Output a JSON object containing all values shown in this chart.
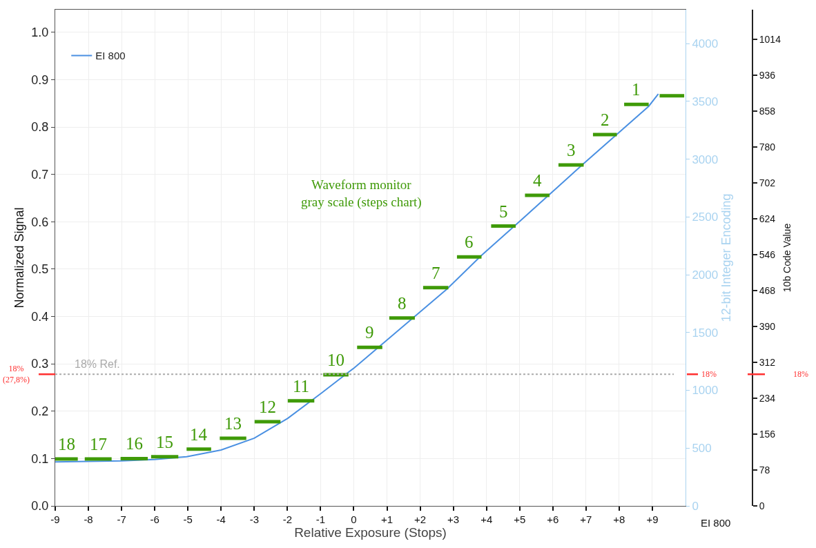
{
  "chart_data": {
    "type": "line",
    "xlabel": "Relative Exposure (Stops)",
    "ylabel": "Normalized Signal",
    "y2label": "12-bit Integer Encoding",
    "y3label": "10b Code Value",
    "xlim": [
      -9,
      10
    ],
    "xticks": [
      {
        "value": -9,
        "label": "-9"
      },
      {
        "value": -8,
        "label": "-8"
      },
      {
        "value": -7,
        "label": "-7"
      },
      {
        "value": -6,
        "label": "-6"
      },
      {
        "value": -5,
        "label": "-5"
      },
      {
        "value": -4,
        "label": "-4"
      },
      {
        "value": -3,
        "label": "-3"
      },
      {
        "value": -2,
        "label": "-2"
      },
      {
        "value": -1,
        "label": "-1"
      },
      {
        "value": 0,
        "label": "0"
      },
      {
        "value": 1,
        "label": "+1"
      },
      {
        "value": 2,
        "label": "+2"
      },
      {
        "value": 3,
        "label": "+3"
      },
      {
        "value": 4,
        "label": "+4"
      },
      {
        "value": 5,
        "label": "+5"
      },
      {
        "value": 6,
        "label": "+6"
      },
      {
        "value": 7,
        "label": "+7"
      },
      {
        "value": 8,
        "label": "+8"
      },
      {
        "value": 9,
        "label": "+9"
      }
    ],
    "ylim": [
      0,
      1.048
    ],
    "yticks": [
      {
        "value": 0,
        "label": "0.0"
      },
      0.1,
      0.2,
      0.3,
      0.4,
      0.5,
      0.6,
      0.7,
      0.8,
      0.9,
      {
        "value": 1,
        "label": "1.0"
      }
    ],
    "y2lim": [
      0,
      4293
    ],
    "y2ticks": [
      0,
      500,
      1000,
      1500,
      2000,
      2500,
      3000,
      3500,
      4000
    ],
    "y3lim": [
      0,
      1078
    ],
    "y3ticks": [
      0,
      78,
      156,
      234,
      312,
      390,
      468,
      546,
      624,
      702,
      780,
      858,
      936,
      1014
    ],
    "grid": true,
    "legend": "top left",
    "series": [
      {
        "name": "EI 800",
        "color": "#4a90e2",
        "x": [
          -9,
          -8,
          -7,
          -6,
          -5.04,
          -4.0,
          -3.0,
          -1.99,
          -0.96,
          0.02,
          1.25,
          2.81,
          3.85,
          4.86,
          6.9,
          8.89,
          9.18
        ],
        "values": [
          0.093,
          0.094,
          0.095,
          0.098,
          0.104,
          0.118,
          0.143,
          0.185,
          0.239,
          0.292,
          0.365,
          0.458,
          0.529,
          0.592,
          0.721,
          0.844,
          0.87
        ]
      },
      {
        "color": "#3f9a08",
        "x": [
          -9.0,
          -8.32,
          null,
          -8.11,
          -7.3,
          null,
          -7.03,
          -6.21,
          null,
          -6.11,
          -5.29,
          null,
          -5.04,
          -4.3,
          null,
          -4.04,
          -3.24,
          null,
          -2.99,
          -2.21,
          null,
          -1.99,
          -1.19,
          null,
          -0.92,
          -0.16,
          null,
          0.1,
          0.86,
          null,
          1.07,
          1.84,
          null,
          2.09,
          2.85,
          null,
          3.11,
          3.85,
          null,
          4.14,
          4.88,
          null,
          5.16,
          5.9,
          null,
          6.17,
          6.93,
          null,
          7.21,
          7.93,
          null,
          8.15,
          8.89,
          null,
          9.22,
          9.96
        ],
        "values": [
          0.099,
          0.099,
          null,
          0.099,
          0.099,
          null,
          0.1,
          0.1,
          null,
          0.104,
          0.104,
          null,
          0.12,
          0.12,
          null,
          0.143,
          0.143,
          null,
          0.178,
          0.178,
          null,
          0.222,
          0.222,
          null,
          0.277,
          0.277,
          null,
          0.335,
          0.335,
          null,
          0.397,
          0.397,
          null,
          0.461,
          0.461,
          null,
          0.526,
          0.526,
          null,
          0.591,
          0.591,
          null,
          0.656,
          0.656,
          null,
          0.72,
          0.72,
          null,
          0.784,
          0.784,
          null,
          0.848,
          0.848,
          null,
          0.866,
          0.866
        ]
      }
    ],
    "ref_lines": [
      {
        "axis": "y",
        "value": 0.278,
        "label": "18% Ref.",
        "color": "#aaaaaa",
        "line_style": "dotted"
      }
    ],
    "annotations": [
      {
        "text": "18",
        "x": -8.66,
        "y": 0.099
      },
      {
        "text": "17",
        "x": -7.7,
        "y": 0.099
      },
      {
        "text": "16",
        "x": -6.62,
        "y": 0.1
      },
      {
        "text": "15",
        "x": -5.7,
        "y": 0.104
      },
      {
        "text": "14",
        "x": -4.67,
        "y": 0.12
      },
      {
        "text": "13",
        "x": -3.64,
        "y": 0.143
      },
      {
        "text": "12",
        "x": -2.6,
        "y": 0.178
      },
      {
        "text": "11",
        "x": -1.59,
        "y": 0.222
      },
      {
        "text": "10",
        "x": -0.54,
        "y": 0.277
      },
      {
        "text": "9",
        "x": 0.48,
        "y": 0.335
      },
      {
        "text": "8",
        "x": 1.45,
        "y": 0.397
      },
      {
        "text": "7",
        "x": 2.47,
        "y": 0.461
      },
      {
        "text": "6",
        "x": 3.48,
        "y": 0.526
      },
      {
        "text": "5",
        "x": 4.51,
        "y": 0.591
      },
      {
        "text": "4",
        "x": 5.53,
        "y": 0.656
      },
      {
        "text": "3",
        "x": 6.55,
        "y": 0.72
      },
      {
        "text": "2",
        "x": 7.57,
        "y": 0.784
      },
      {
        "text": "1",
        "x": 8.52,
        "y": 0.848
      },
      "Waveform monitor\ngray scale (steps chart)",
      "EI 800",
      "18%\n(27,8%)",
      "18%",
      "18%"
    ]
  }
}
